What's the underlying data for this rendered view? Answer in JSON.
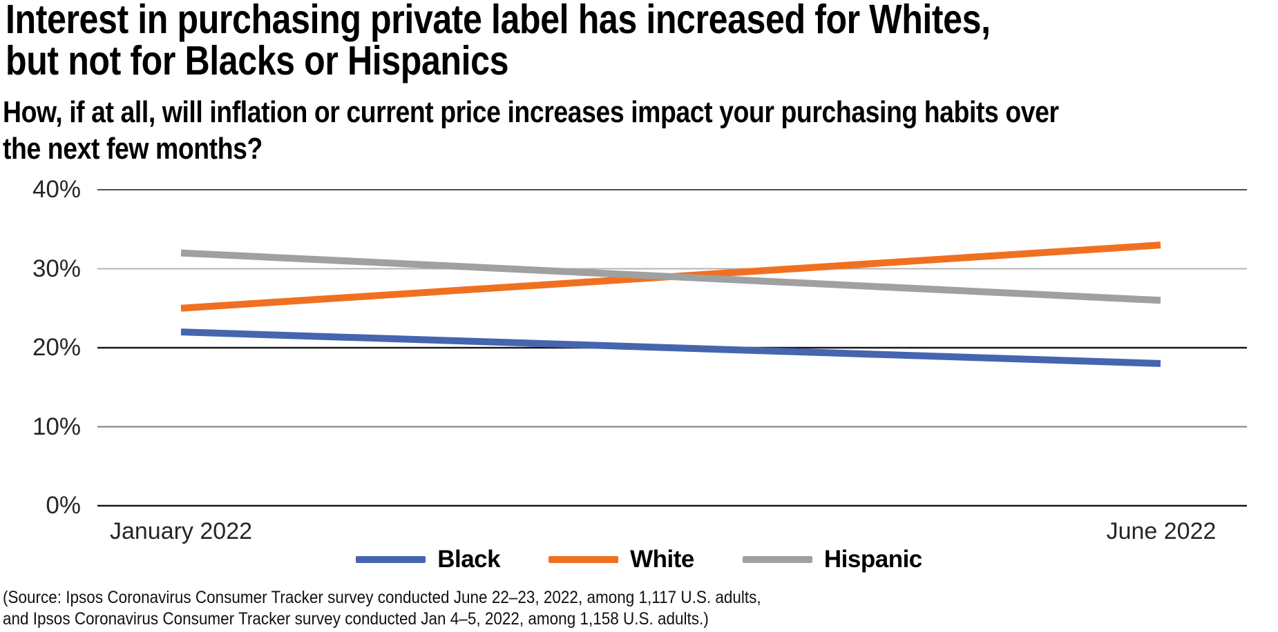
{
  "header": {
    "title_line1": "Interest in purchasing private label has increased for Whites,",
    "title_line2": "but not for Blacks or Hispanics",
    "subtitle_line1": "How, if at all, will inflation or current price increases impact your purchasing habits over",
    "subtitle_line2": "the next few months?"
  },
  "chart_data": {
    "type": "line",
    "x": [
      "January 2022",
      "June 2022"
    ],
    "series": [
      {
        "name": "Black",
        "color": "#4565af",
        "values": [
          22,
          18
        ]
      },
      {
        "name": "White",
        "color": "#f07022",
        "values": [
          25,
          33
        ]
      },
      {
        "name": "Hispanic",
        "color": "#a0a0a0",
        "values": [
          32,
          26
        ]
      }
    ],
    "yticks": [
      {
        "label": "40%",
        "value": 40,
        "color": "#4d4d4d",
        "width": 2
      },
      {
        "label": "30%",
        "value": 30,
        "color": "#b3b3b3",
        "width": 2
      },
      {
        "label": "20%",
        "value": 20,
        "color": "#161616",
        "width": 2.5
      },
      {
        "label": "10%",
        "value": 10,
        "color": "#7d7d7d",
        "width": 2
      },
      {
        "label": "0%",
        "value": 0,
        "color": "#161616",
        "width": 2.5
      }
    ],
    "ylim": [
      0,
      40
    ],
    "grid": true,
    "legend_position": "bottom"
  },
  "source": {
    "line1": "(Source: Ipsos Coronavirus Consumer Tracker survey conducted June 22–23, 2022, among 1,117 U.S. adults,",
    "line2": "and Ipsos Coronavirus Consumer Tracker survey conducted Jan 4–5, 2022, among 1,158 U.S. adults.)"
  }
}
